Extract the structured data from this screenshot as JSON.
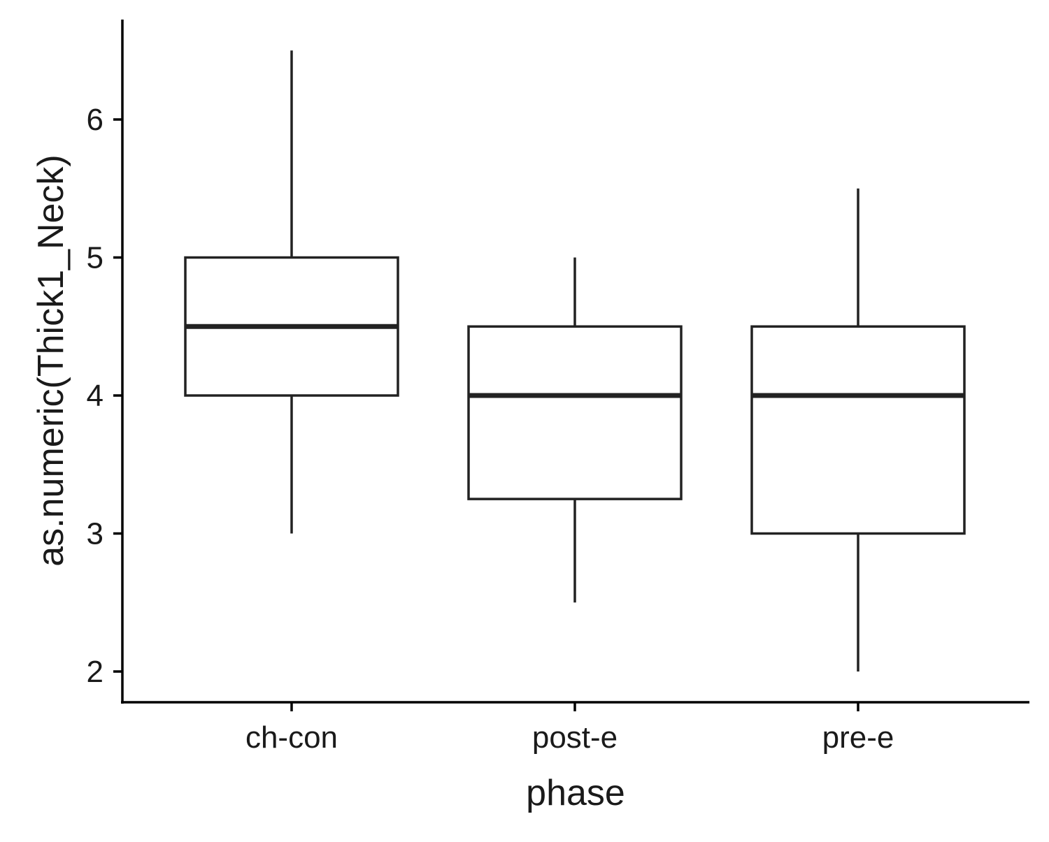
{
  "chart_data": {
    "type": "boxplot",
    "title": "",
    "xlabel": "phase",
    "ylabel": "as.numeric(Thick1_Neck)",
    "categories": [
      "ch-con",
      "post-e",
      "pre-e"
    ],
    "boxes": [
      {
        "category": "ch-con",
        "min": 3.0,
        "q1": 4.0,
        "median": 4.5,
        "q3": 5.0,
        "max": 6.5
      },
      {
        "category": "post-e",
        "min": 2.5,
        "q1": 3.25,
        "median": 4.0,
        "q3": 4.5,
        "max": 5.0
      },
      {
        "category": "pre-e",
        "min": 2.0,
        "q1": 3.0,
        "median": 4.0,
        "q3": 4.5,
        "max": 5.5
      }
    ],
    "y_ticks": [
      2,
      3,
      4,
      5,
      6
    ],
    "y_tick_labels": [
      "2",
      "3",
      "4",
      "5",
      "6"
    ],
    "ylim": [
      1.78,
      6.72
    ],
    "grid": false,
    "legend": "none",
    "colors": {
      "box_fill": "#ffffff",
      "box_stroke": "#222222",
      "axis": "#000000"
    }
  }
}
